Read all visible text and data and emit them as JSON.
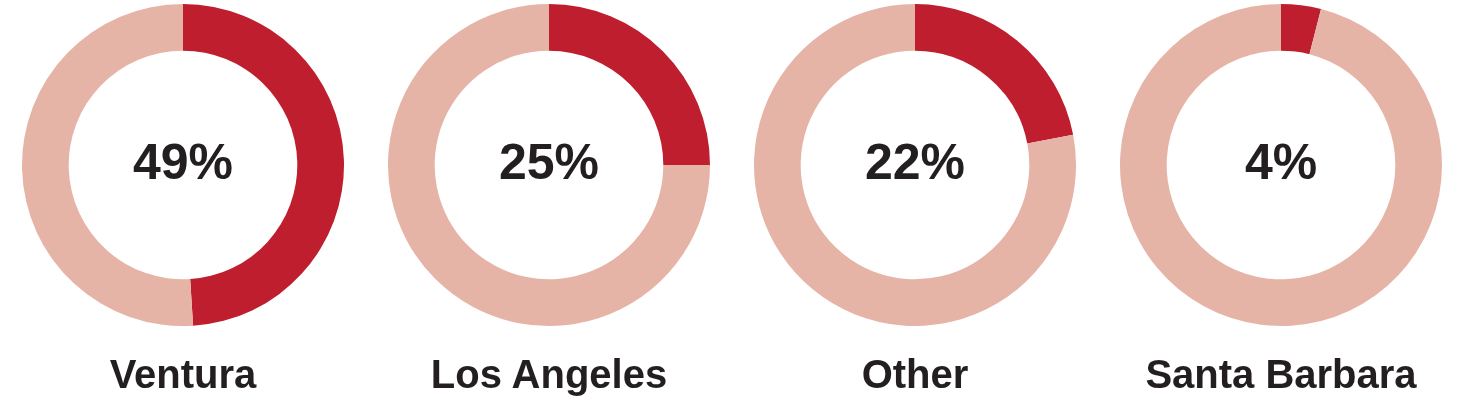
{
  "chart_data": [
    {
      "type": "donut",
      "title": "Ventura",
      "categories": [
        null,
        null
      ],
      "values": [
        49,
        51
      ],
      "colors": [
        "#be1e2d",
        "#e6b3a7"
      ],
      "value_labels": [
        "49%",
        null
      ]
    },
    {
      "type": "donut",
      "title": "Los Angeles",
      "categories": [
        null,
        null
      ],
      "values": [
        25,
        75
      ],
      "colors": [
        "#be1e2d",
        "#e6b3a7"
      ],
      "value_labels": [
        "25%",
        null
      ]
    },
    {
      "type": "donut",
      "title": "Other",
      "categories": [
        null,
        null
      ],
      "values": [
        22,
        78
      ],
      "colors": [
        "#be1e2d",
        "#e6b3a7"
      ],
      "value_labels": [
        "22%",
        null
      ]
    },
    {
      "type": "donut",
      "title": "Santa Barbara",
      "categories": [
        null,
        null
      ],
      "values": [
        4,
        96
      ],
      "colors": [
        "#be1e2d",
        "#e6b3a7"
      ],
      "value_labels": [
        "4%",
        null
      ]
    }
  ]
}
